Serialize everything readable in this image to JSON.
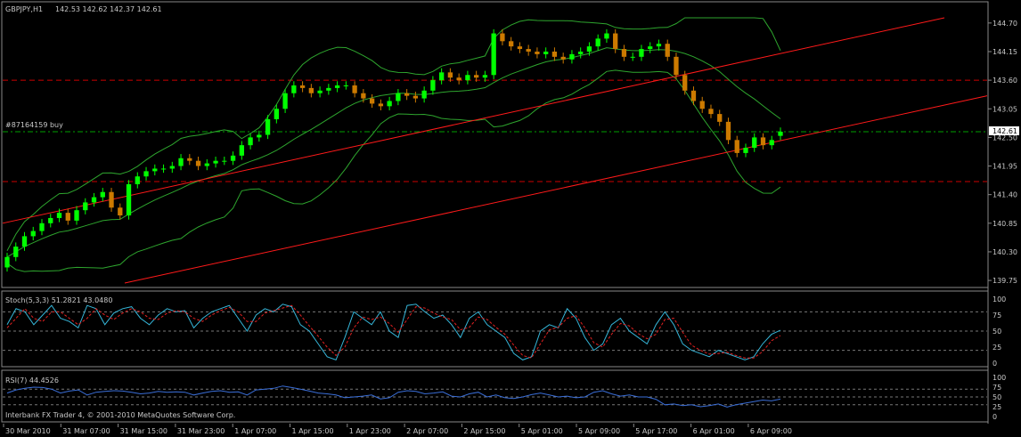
{
  "window": {
    "symbol_label": "GBPJPY,H1",
    "ohlc_label": "142.53 142.62 142.37 142.61",
    "order_label": "#87164159 buy",
    "current_price_label": "142.61",
    "footer_label": "Interbank FX Trader 4, © 2001-2010 MetaQuotes Software Corp."
  },
  "colors": {
    "background": "#000000",
    "bull_candle": "#00ff00",
    "bear_candle": "#cc7a00",
    "bollinger": "#2ea52e",
    "trendline": "#ff1a1a",
    "hline": "#cc0000",
    "order_line": "#00a000",
    "stoch_main": "#35b5d8",
    "stoch_signal": "#e02020",
    "rsi": "#3a6ed8",
    "grid_text": "#c8c8c8"
  },
  "chart_data": [
    {
      "type": "candlestick",
      "title": "GBPJPY,H1",
      "yticks": [
        "144.70",
        "144.15",
        "143.60",
        "143.05",
        "142.50",
        "141.95",
        "141.40",
        "140.85",
        "140.30",
        "139.75"
      ],
      "ylim": [
        139.7,
        144.8
      ],
      "xticks": [
        "30 Mar 2010",
        "31 Mar 07:00",
        "31 Mar 15:00",
        "31 Mar 23:00",
        "1 Apr 07:00",
        "1 Apr 15:00",
        "1 Apr 23:00",
        "2 Apr 07:00",
        "2 Apr 15:00",
        "5 Apr 01:00",
        "5 Apr 09:00",
        "5 Apr 17:00",
        "6 Apr 01:00",
        "6 Apr 09:00"
      ],
      "horizontal_lines": [
        143.6,
        141.65
      ],
      "order_level": 142.61,
      "close_series": [
        140.2,
        140.4,
        140.6,
        140.7,
        140.85,
        140.95,
        141.05,
        140.9,
        141.1,
        141.25,
        141.35,
        141.45,
        141.15,
        141.0,
        141.6,
        141.75,
        141.85,
        141.9,
        141.9,
        141.95,
        142.1,
        142.05,
        141.95,
        142.0,
        142.05,
        142.05,
        142.15,
        142.35,
        142.5,
        142.55,
        142.85,
        143.05,
        143.35,
        143.5,
        143.45,
        143.35,
        143.4,
        143.45,
        143.5,
        143.5,
        143.35,
        143.25,
        143.15,
        143.1,
        143.2,
        143.35,
        143.3,
        143.25,
        143.4,
        143.6,
        143.75,
        143.65,
        143.6,
        143.7,
        143.65,
        143.7,
        144.5,
        144.35,
        144.25,
        144.2,
        144.15,
        144.1,
        144.15,
        144.05,
        144.0,
        144.1,
        144.15,
        144.25,
        144.4,
        144.5,
        144.2,
        144.05,
        144.05,
        144.2,
        144.25,
        144.3,
        144.05,
        143.7,
        143.4,
        143.2,
        143.05,
        142.95,
        142.8,
        142.45,
        142.2,
        142.3,
        142.5,
        142.35,
        142.45,
        142.61
      ],
      "open_series": [
        140.0,
        140.2,
        140.4,
        140.6,
        140.7,
        140.85,
        140.95,
        141.05,
        140.9,
        141.1,
        141.25,
        141.35,
        141.45,
        141.15,
        141.0,
        141.6,
        141.75,
        141.85,
        141.9,
        141.9,
        141.95,
        142.1,
        142.05,
        141.95,
        142.0,
        142.05,
        142.05,
        142.15,
        142.35,
        142.5,
        142.55,
        142.85,
        143.05,
        143.35,
        143.5,
        143.45,
        143.35,
        143.4,
        143.45,
        143.5,
        143.5,
        143.35,
        143.25,
        143.15,
        143.1,
        143.2,
        143.35,
        143.3,
        143.25,
        143.4,
        143.6,
        143.75,
        143.65,
        143.6,
        143.7,
        143.65,
        143.7,
        144.5,
        144.35,
        144.25,
        144.2,
        144.15,
        144.1,
        144.15,
        144.05,
        144.0,
        144.1,
        144.15,
        144.25,
        144.4,
        144.5,
        144.2,
        144.05,
        144.05,
        144.2,
        144.25,
        144.3,
        144.05,
        143.7,
        143.4,
        143.2,
        143.05,
        142.95,
        142.8,
        142.45,
        142.2,
        142.3,
        142.5,
        142.35,
        142.53
      ]
    },
    {
      "type": "line",
      "title": "Stoch(5,3,3) 51.2821 43.0480",
      "yticks": [
        "100",
        "75",
        "50",
        "25",
        "0"
      ],
      "ylim": [
        0,
        100
      ],
      "levels": [
        80,
        50,
        20
      ],
      "series": [
        {
          "name": "main",
          "values": [
            60,
            85,
            80,
            60,
            75,
            90,
            70,
            65,
            55,
            90,
            85,
            60,
            78,
            85,
            88,
            70,
            60,
            75,
            85,
            80,
            82,
            55,
            70,
            80,
            85,
            90,
            70,
            50,
            75,
            85,
            80,
            92,
            88,
            60,
            50,
            30,
            10,
            5,
            40,
            80,
            70,
            60,
            80,
            50,
            40,
            90,
            92,
            80,
            70,
            75,
            60,
            40,
            70,
            80,
            60,
            50,
            40,
            15,
            5,
            10,
            50,
            60,
            55,
            85,
            70,
            40,
            20,
            30,
            60,
            70,
            50,
            40,
            30,
            60,
            80,
            60,
            30,
            20,
            15,
            10,
            20,
            15,
            10,
            5,
            10,
            30,
            45,
            51.28
          ]
        },
        {
          "name": "signal",
          "values": [
            55,
            70,
            85,
            70,
            65,
            80,
            80,
            70,
            60,
            70,
            85,
            75,
            68,
            78,
            85,
            80,
            70,
            68,
            78,
            82,
            80,
            70,
            65,
            75,
            82,
            87,
            80,
            65,
            65,
            78,
            82,
            86,
            90,
            75,
            58,
            42,
            25,
            12,
            25,
            55,
            72,
            68,
            72,
            62,
            48,
            68,
            88,
            86,
            78,
            72,
            68,
            52,
            56,
            72,
            68,
            56,
            45,
            28,
            12,
            8,
            30,
            52,
            56,
            70,
            74,
            55,
            32,
            25,
            45,
            62,
            58,
            46,
            38,
            45,
            68,
            70,
            48,
            28,
            20,
            14,
            15,
            17,
            12,
            8,
            8,
            18,
            35,
            43.05
          ]
        }
      ]
    },
    {
      "type": "line",
      "title": "RSI(7) 44.4526",
      "yticks": [
        "100",
        "75",
        "50",
        "25",
        "0"
      ],
      "ylim": [
        0,
        100
      ],
      "levels": [
        70,
        50,
        30
      ],
      "series": [
        {
          "name": "RSI",
          "values": [
            60,
            68,
            72,
            75,
            74,
            70,
            60,
            65,
            68,
            55,
            62,
            64,
            66,
            65,
            62,
            58,
            60,
            64,
            62,
            63,
            62,
            55,
            60,
            64,
            66,
            62,
            63,
            55,
            68,
            70,
            72,
            78,
            74,
            70,
            65,
            60,
            58,
            55,
            48,
            50,
            52,
            55,
            45,
            48,
            62,
            66,
            64,
            58,
            60,
            63,
            52,
            50,
            58,
            62,
            50,
            55,
            48,
            46,
            50,
            56,
            60,
            55,
            50,
            52,
            48,
            50,
            62,
            66,
            58,
            52,
            55,
            50,
            50,
            44,
            30,
            32,
            28,
            30,
            25,
            28,
            32,
            24,
            30,
            34,
            38,
            42,
            40,
            44.45
          ]
        }
      ]
    }
  ]
}
